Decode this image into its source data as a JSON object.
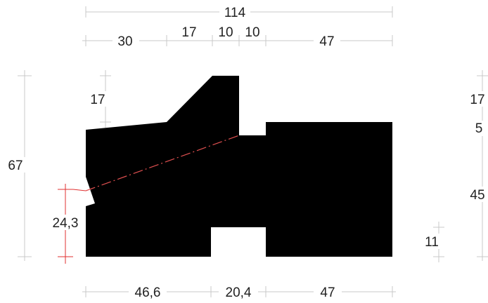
{
  "diagram": {
    "colors": {
      "profile": "#000000",
      "dimension_line": "#c8c8c8",
      "highlight": "#e03030",
      "text": "#222222"
    },
    "top_dims": {
      "overall": "114",
      "seg1": "30",
      "seg2": "17",
      "seg3": "10",
      "seg4": "10",
      "seg5": "47"
    },
    "bottom_dims": {
      "seg1": "46,6",
      "seg2": "20,4",
      "seg3": "47"
    },
    "left_dims": {
      "overall": "67",
      "top_offset": "17",
      "red_height": "24,3"
    },
    "right_dims": {
      "top": "17",
      "step": "5",
      "body": "45",
      "notch": "11"
    }
  }
}
